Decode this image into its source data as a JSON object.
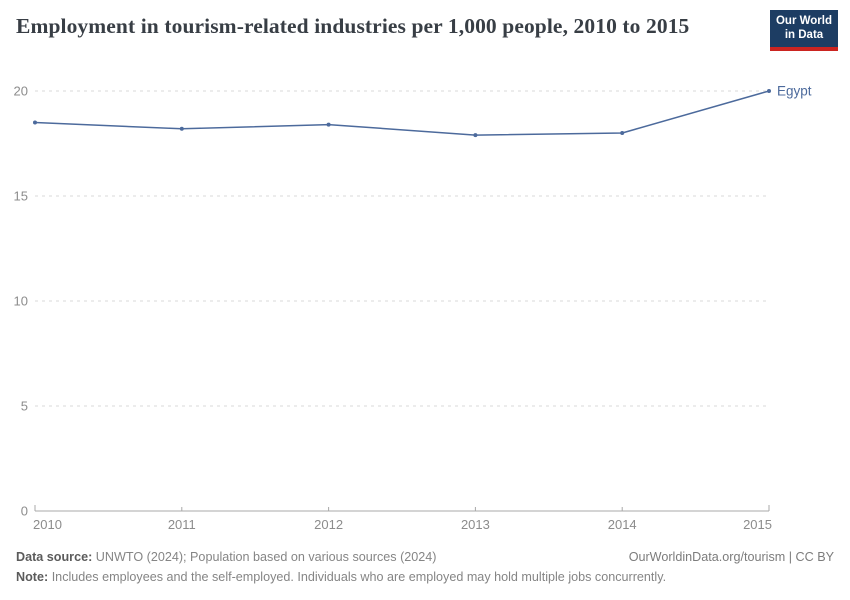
{
  "header": {
    "title": "Employment in tourism-related industries per 1,000 people, 2010 to 2015",
    "logo": {
      "line1": "Our World",
      "line2": "in Data",
      "bg_color": "#1d3d63",
      "accent_color": "#cb2420"
    }
  },
  "chart_data": {
    "type": "line",
    "title": "Employment in tourism-related industries per 1,000 people, 2010 to 2015",
    "x": [
      2010,
      2011,
      2012,
      2013,
      2014,
      2015
    ],
    "series": [
      {
        "name": "Egypt",
        "color": "#4C6A9C",
        "values": [
          18.5,
          18.2,
          18.4,
          17.9,
          18.0,
          20.0
        ]
      }
    ],
    "xticks": [
      "2010",
      "2011",
      "2012",
      "2013",
      "2014",
      "2015"
    ],
    "yticks": [
      0,
      5,
      10,
      15,
      20
    ],
    "ylim": [
      0,
      20.5
    ],
    "xlabel": "",
    "ylabel": "",
    "grid": "horizontal-dashed",
    "grid_color": "#dadada",
    "axis_color": "#a8a8a8",
    "tick_label_color": "#8c8c8c",
    "legend_position": "end-of-line",
    "end_label": "Egypt"
  },
  "footer": {
    "data_source_label": "Data source:",
    "data_source_text": "UNWTO (2024); Population based on various sources (2024)",
    "note_label": "Note:",
    "note_text": "Includes employees and the self-employed. Individuals who are employed may hold multiple jobs concurrently.",
    "link_text": "OurWorldinData.org/tourism | CC BY"
  }
}
